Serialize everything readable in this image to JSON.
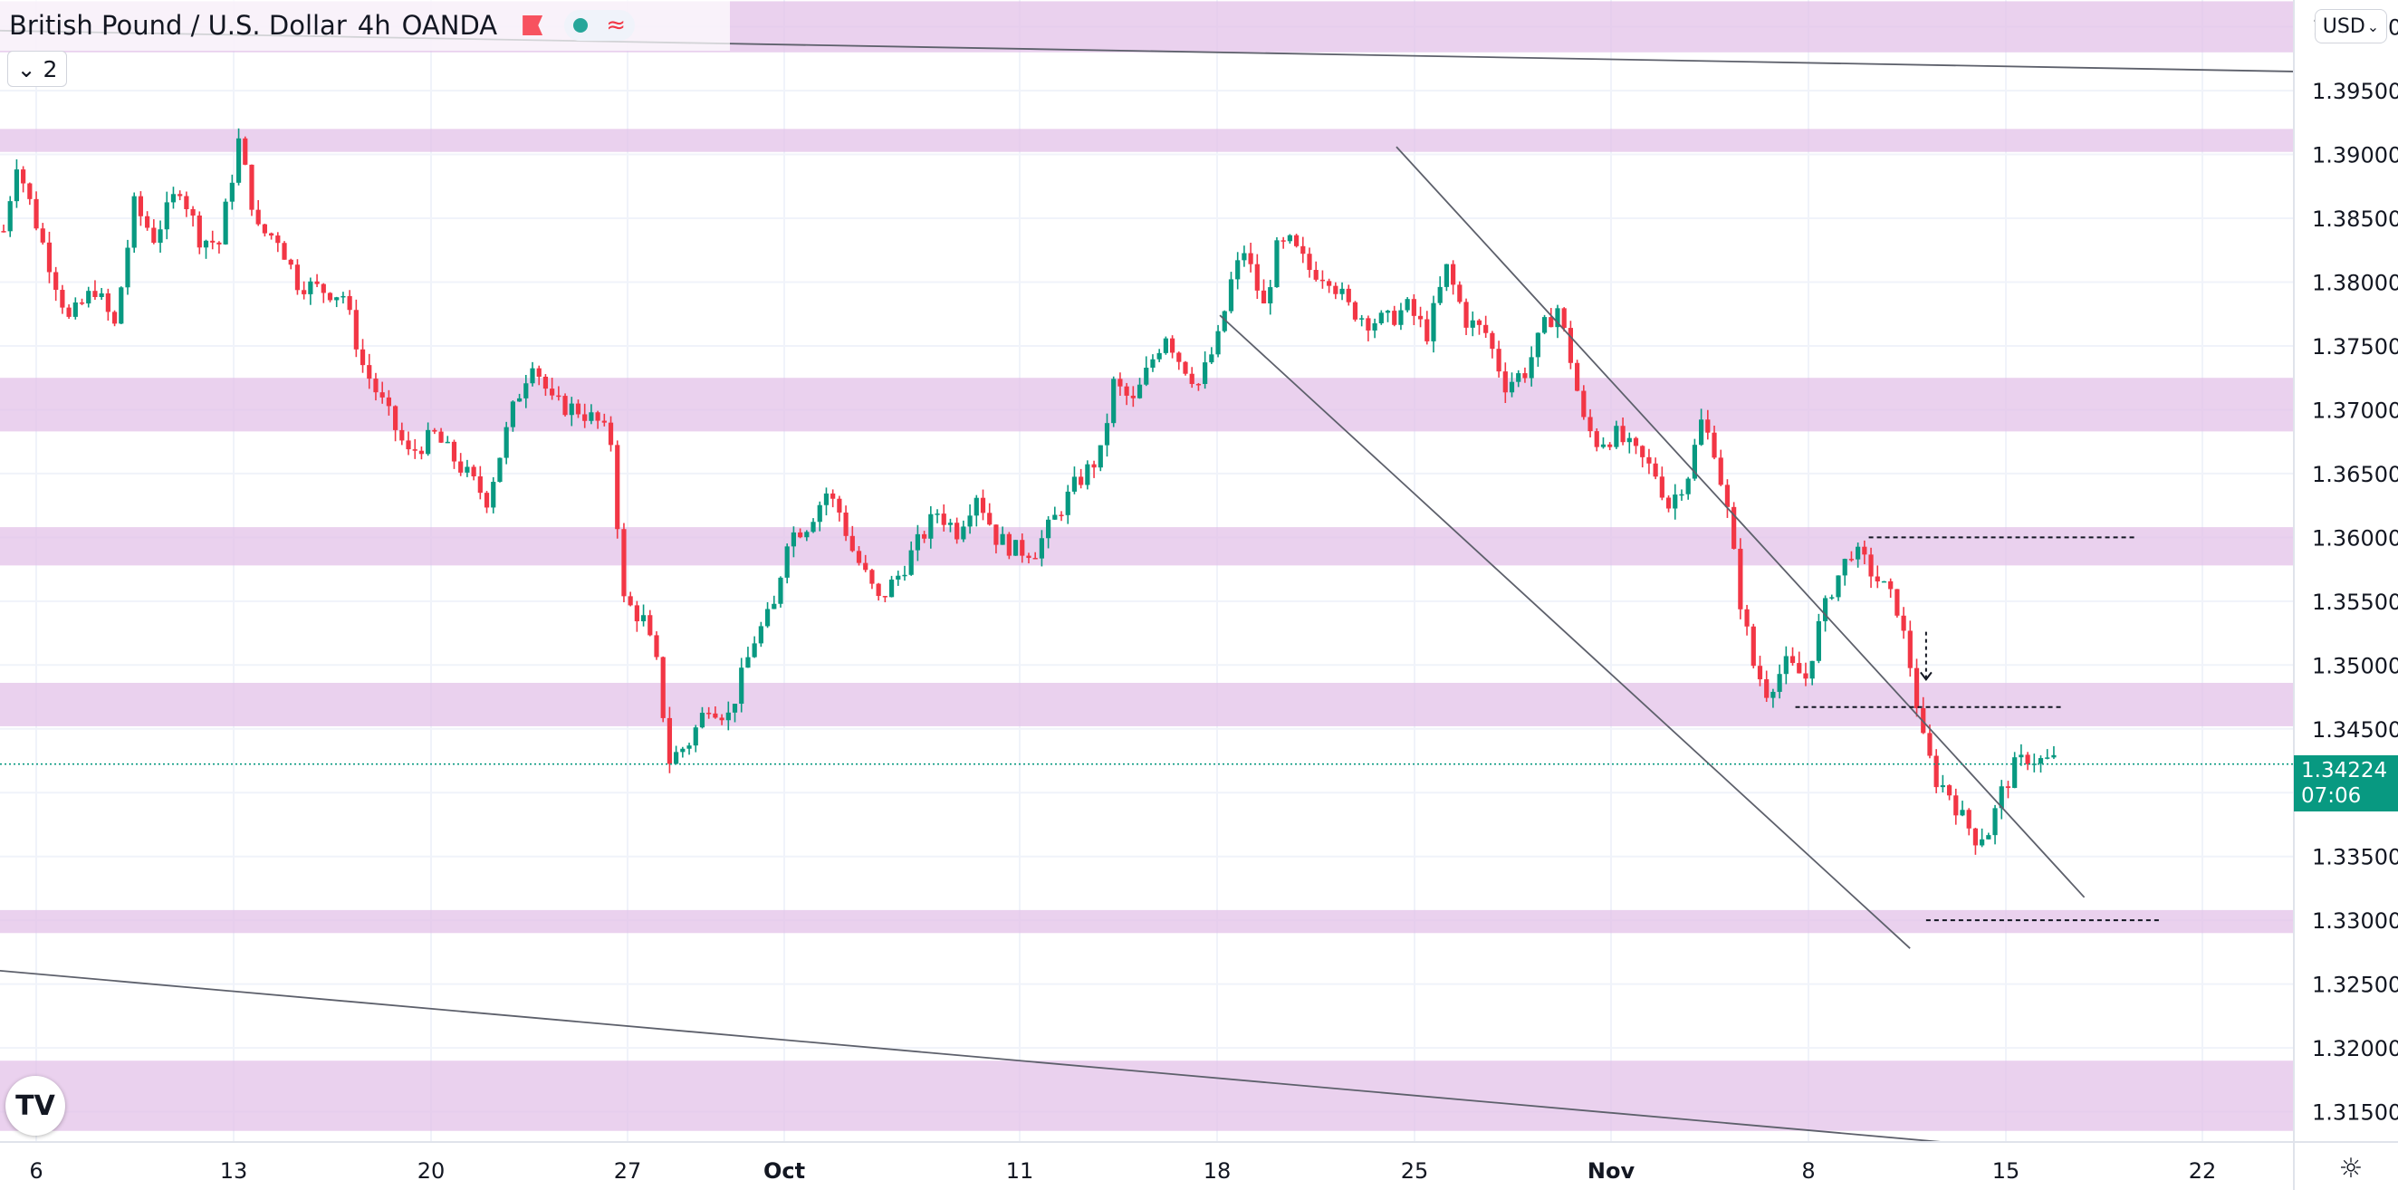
{
  "header": {
    "symbol": "British Pound / U.S. Dollar",
    "interval": "4h",
    "exchange": "OANDA",
    "wave_glyph": "≈",
    "indicator_count": "2",
    "chevron_glyph": "⌄",
    "currency": "USD",
    "currency_chevron": "⌄"
  },
  "price_label": {
    "price": "1.34224",
    "countdown": "07:06"
  },
  "logo_text": "TV",
  "gear_glyph": "☼",
  "colors": {
    "up": "#089981",
    "down": "#f23645",
    "zone": "#e1bee7",
    "trend": "#131722"
  },
  "chart_data": {
    "type": "candlestick",
    "y_axis": {
      "ticks": [
        "1.40000",
        "1.39500",
        "1.39000",
        "1.38500",
        "1.38000",
        "1.37500",
        "1.37000",
        "1.36500",
        "1.36000",
        "1.35500",
        "1.35000",
        "1.34500",
        "1.34000",
        "1.33500",
        "1.33000",
        "1.32500",
        "1.32000",
        "1.31500"
      ],
      "range": [
        1.3127,
        1.4021
      ]
    },
    "x_axis": {
      "ticks": [
        "6",
        "13",
        "20",
        "27",
        "Oct",
        "11",
        "18",
        "25",
        "Nov",
        "8",
        "15",
        "22"
      ],
      "bold_ticks": [
        "Oct",
        "Nov"
      ]
    },
    "last_price": 1.34224,
    "zones": [
      [
        1.398,
        1.402
      ],
      [
        1.3902,
        1.392
      ],
      [
        1.3683,
        1.3725
      ],
      [
        1.3578,
        1.3608
      ],
      [
        1.3452,
        1.3486
      ],
      [
        1.329,
        1.3308
      ],
      [
        1.3135,
        1.319
      ]
    ],
    "anchors": [
      [
        0,
        1.384
      ],
      [
        2,
        1.3895
      ],
      [
        6,
        1.383
      ],
      [
        10,
        1.377
      ],
      [
        14,
        1.3795
      ],
      [
        17,
        1.3765
      ],
      [
        20,
        1.386
      ],
      [
        23,
        1.3835
      ],
      [
        27,
        1.3875
      ],
      [
        30,
        1.3835
      ],
      [
        33,
        1.383
      ],
      [
        36,
        1.391
      ],
      [
        39,
        1.384
      ],
      [
        42,
        1.3835
      ],
      [
        45,
        1.38
      ],
      [
        48,
        1.3795
      ],
      [
        52,
        1.379
      ],
      [
        55,
        1.3735
      ],
      [
        58,
        1.3705
      ],
      [
        62,
        1.3665
      ],
      [
        66,
        1.368
      ],
      [
        70,
        1.3655
      ],
      [
        74,
        1.363
      ],
      [
        78,
        1.37
      ],
      [
        81,
        1.374
      ],
      [
        84,
        1.3705
      ],
      [
        88,
        1.37
      ],
      [
        91,
        1.369
      ],
      [
        93,
        1.3675
      ],
      [
        95,
        1.355
      ],
      [
        98,
        1.3535
      ],
      [
        100,
        1.35
      ],
      [
        102,
        1.3425
      ],
      [
        105,
        1.344
      ],
      [
        108,
        1.347
      ],
      [
        111,
        1.346
      ],
      [
        113,
        1.349
      ],
      [
        115,
        1.352
      ],
      [
        118,
        1.3545
      ],
      [
        120,
        1.36
      ],
      [
        123,
        1.361
      ],
      [
        126,
        1.3635
      ],
      [
        128,
        1.362
      ],
      [
        130,
        1.359
      ],
      [
        134,
        1.355
      ],
      [
        137,
        1.357
      ],
      [
        140,
        1.3595
      ],
      [
        143,
        1.362
      ],
      [
        146,
        1.3605
      ],
      [
        149,
        1.3635
      ],
      [
        152,
        1.36
      ],
      [
        155,
        1.359
      ],
      [
        158,
        1.359
      ],
      [
        161,
        1.3615
      ],
      [
        164,
        1.364
      ],
      [
        168,
        1.3665
      ],
      [
        170,
        1.372
      ],
      [
        173,
        1.3705
      ],
      [
        176,
        1.374
      ],
      [
        178,
        1.376
      ],
      [
        180,
        1.374
      ],
      [
        183,
        1.372
      ],
      [
        186,
        1.3755
      ],
      [
        188,
        1.38
      ],
      [
        190,
        1.3825
      ],
      [
        193,
        1.378
      ],
      [
        195,
        1.3825
      ],
      [
        197,
        1.383
      ],
      [
        200,
        1.381
      ],
      [
        203,
        1.3805
      ],
      [
        206,
        1.378
      ],
      [
        209,
        1.377
      ],
      [
        212,
        1.377
      ],
      [
        215,
        1.378
      ],
      [
        218,
        1.376
      ],
      [
        221,
        1.381
      ],
      [
        224,
        1.377
      ],
      [
        227,
        1.376
      ],
      [
        230,
        1.372
      ],
      [
        233,
        1.373
      ],
      [
        236,
        1.3765
      ],
      [
        238,
        1.378
      ],
      [
        240,
        1.374
      ],
      [
        242,
        1.369
      ],
      [
        244,
        1.3675
      ],
      [
        247,
        1.368
      ],
      [
        250,
        1.3665
      ],
      [
        253,
        1.365
      ],
      [
        255,
        1.3625
      ],
      [
        258,
        1.365
      ],
      [
        260,
        1.369
      ],
      [
        262,
        1.367
      ],
      [
        264,
        1.362
      ],
      [
        266,
        1.355
      ],
      [
        268,
        1.35
      ],
      [
        270,
        1.348
      ],
      [
        273,
        1.35
      ],
      [
        276,
        1.349
      ],
      [
        278,
        1.353
      ],
      [
        280,
        1.356
      ],
      [
        283,
        1.359
      ],
      [
        285,
        1.358
      ],
      [
        288,
        1.356
      ],
      [
        290,
        1.3545
      ],
      [
        292,
        1.35
      ],
      [
        294,
        1.344
      ],
      [
        296,
        1.341
      ],
      [
        298,
        1.34
      ],
      [
        300,
        1.338
      ],
      [
        302,
        1.3365
      ],
      [
        304,
        1.337
      ],
      [
        306,
        1.34
      ],
      [
        308,
        1.342
      ],
      [
        310,
        1.3428
      ],
      [
        312,
        1.3425
      ],
      [
        314,
        1.3425
      ]
    ],
    "candle_count": 315,
    "trendlines": [
      [
        [
          0,
          1.3997
        ],
        [
          1,
          1.3965
        ]
      ],
      [
        [
          -1,
          1.3419
        ],
        [
          1,
          1.3102
        ]
      ],
      [
        [
          0.609,
          1.3906
        ],
        [
          0.909,
          1.3318
        ]
      ],
      [
        [
          0.532,
          1.3774
        ],
        [
          0.833,
          1.3278
        ]
      ]
    ],
    "dashed_levels": [
      {
        "price": 1.36,
        "from": 0.815,
        "to": 0.932
      },
      {
        "price": 1.3467,
        "from": 0.783,
        "to": 0.9
      },
      {
        "price": 1.33,
        "from": 0.84,
        "to": 0.943
      }
    ],
    "arrow": {
      "price_from": 1.3526,
      "price_to": 1.349,
      "pos": 0.84
    }
  }
}
